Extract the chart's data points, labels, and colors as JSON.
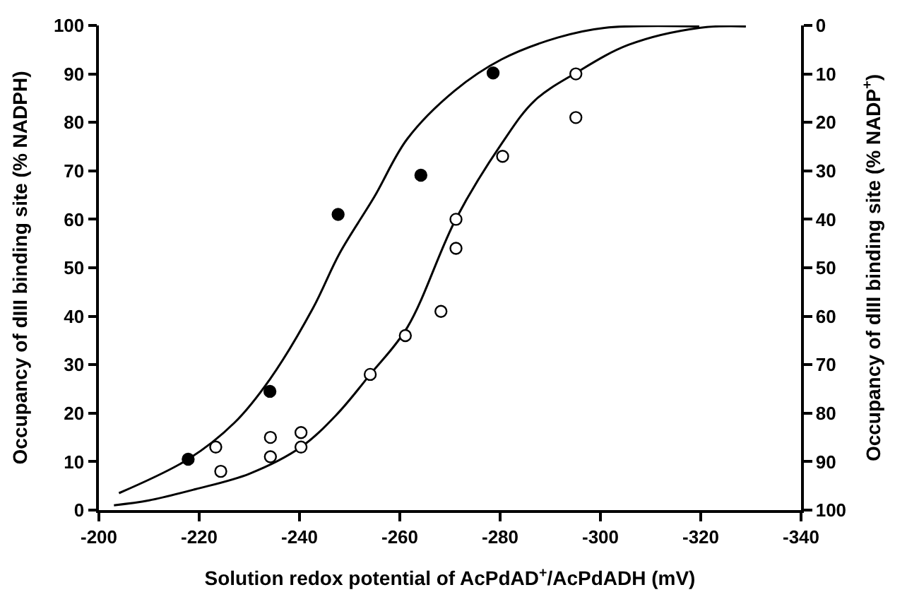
{
  "chart_data": {
    "type": "scatter",
    "xlabel": "Solution redox potential of AcPdAD$^{+}$/AcPdADH (mV)",
    "ylabel": "Occupancy of dIII binding site (% NADPH)",
    "y2label": "Occupancy of dIII binding site (% NADP$^{+}$)",
    "xlim": [
      -200,
      -340
    ],
    "xticks": [
      -200,
      -220,
      -240,
      -260,
      -280,
      -300,
      -320,
      -340
    ],
    "ylim": [
      0,
      100
    ],
    "yticks": [
      0,
      10,
      20,
      30,
      40,
      50,
      60,
      70,
      80,
      90,
      100
    ],
    "y2lim": [
      100,
      0
    ],
    "y2ticks": [
      0,
      10,
      20,
      30,
      40,
      50,
      60,
      70,
      80,
      90,
      100
    ],
    "series": [
      {
        "type": "line",
        "marker": "none",
        "color": "#000000",
        "x": [
          -204,
          -217.8,
          -227,
          -234.1,
          -242.7,
          -248,
          -254.9,
          -261.5,
          -270.9,
          -280.3,
          -291.5,
          -300.8,
          -319.7
        ],
        "values": [
          3.5,
          10.5,
          18,
          27,
          41.7,
          53,
          64.6,
          76.6,
          86.5,
          93,
          97.5,
          99.5,
          99.8
        ]
      },
      {
        "type": "line",
        "marker": "none",
        "color": "#000000",
        "x": [
          -203,
          -210,
          -219.2,
          -230,
          -240.3,
          -247.4,
          -254.1,
          -261.5,
          -271.2,
          -280.3,
          -286.9,
          -295.1,
          -305.6,
          -319.7,
          -329
        ],
        "values": [
          1,
          2,
          4.3,
          7.5,
          13,
          19.7,
          28,
          37.7,
          60.1,
          75.6,
          84.5,
          90.2,
          96,
          99.5,
          99.8
        ]
      },
      {
        "marker": "circle",
        "color": "#000000",
        "x": [
          -217.8,
          -234.1,
          -247.7,
          -264.2,
          -278.6
        ],
        "values": [
          10.5,
          24.5,
          61,
          69.1,
          90.2
        ]
      },
      {
        "marker": "circle",
        "color": "#ffffff",
        "x": [
          -223.3,
          -224.3,
          -234.2,
          -234.2,
          -240.3,
          -240.3,
          -254.1,
          -261.1,
          -268.2,
          -271.2,
          -271.2,
          -280.5,
          -295.1,
          -295.1
        ],
        "values": [
          13,
          8,
          15,
          11,
          16,
          13,
          28,
          36,
          41,
          60,
          54,
          73,
          90,
          81
        ]
      }
    ]
  }
}
